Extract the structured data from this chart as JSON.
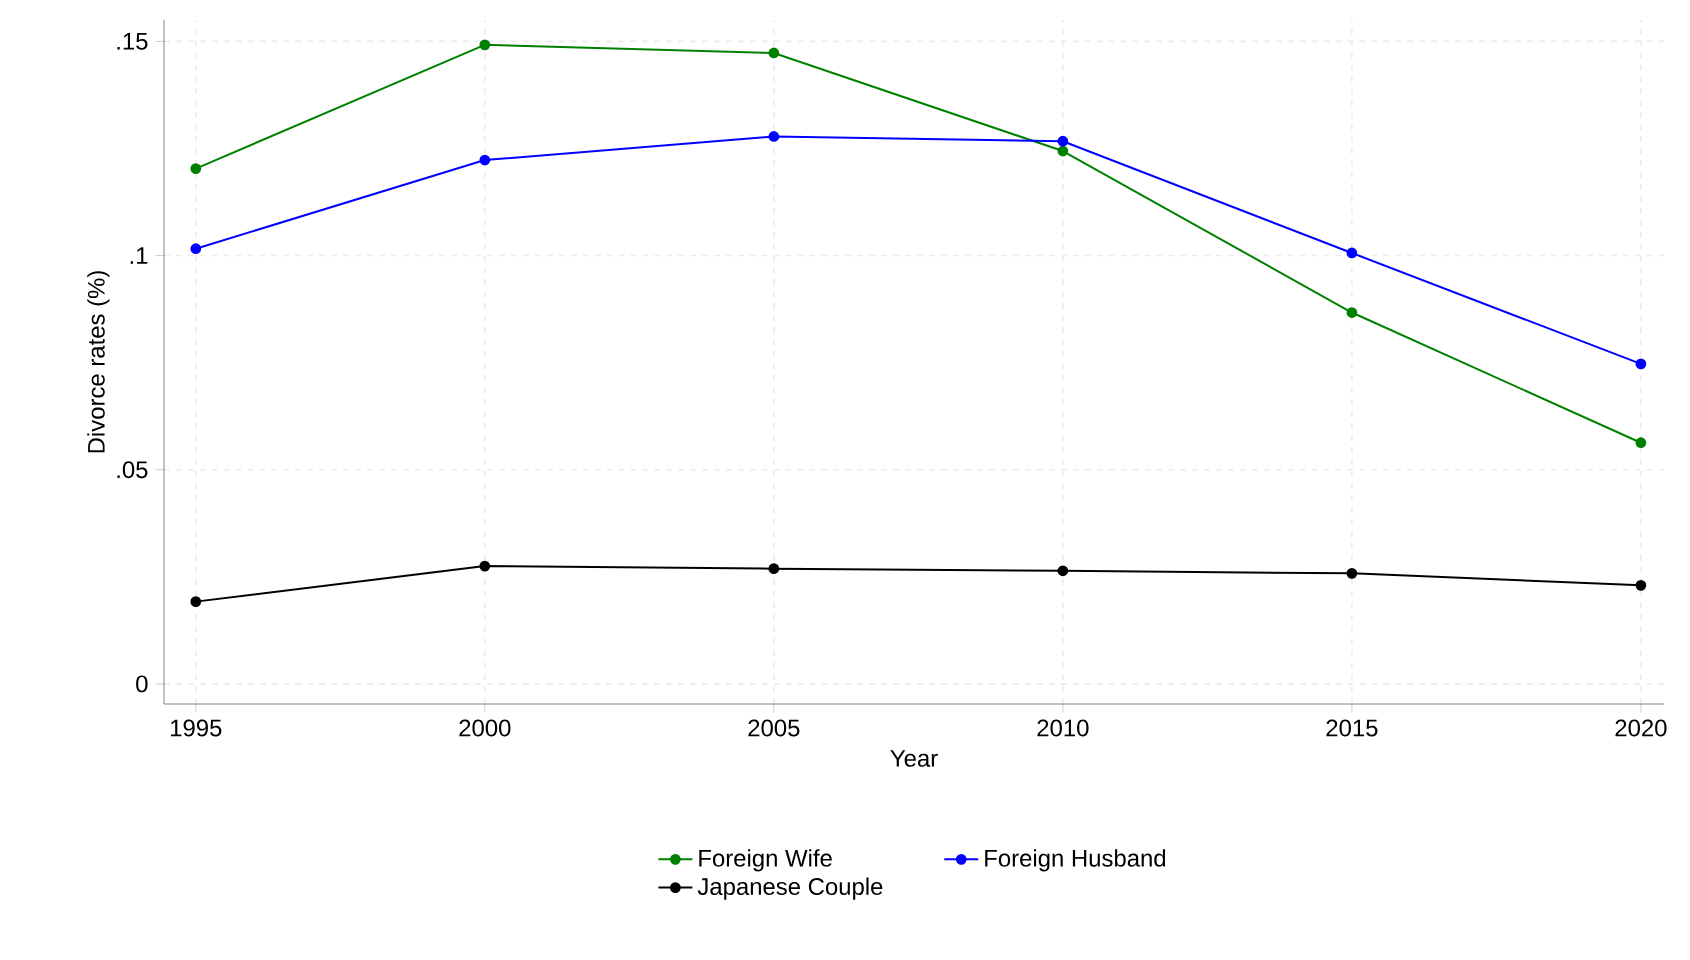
{
  "chart_data": {
    "type": "line",
    "xlabel": "Year",
    "ylabel": "Divorce rates (%)",
    "x": [
      1995,
      2000,
      2005,
      2010,
      2015,
      2020
    ],
    "series": [
      {
        "name": "Foreign Wife",
        "color": "#008000",
        "values": [
          0.1203,
          0.1492,
          0.1473,
          0.1244,
          0.0867,
          0.0563
        ]
      },
      {
        "name": "Foreign Husband",
        "color": "#0000ff",
        "values": [
          0.1016,
          0.1223,
          0.1278,
          0.1267,
          0.1006,
          0.0747
        ]
      },
      {
        "name": "Japanese Couple",
        "color": "#000000",
        "values": [
          0.0192,
          0.0275,
          0.0269,
          0.0264,
          0.0258,
          0.023
        ]
      }
    ],
    "xlim": [
      1994.45,
      2020.4
    ],
    "ylim": [
      -0.0047,
      0.155
    ],
    "xticks": [
      1995,
      2000,
      2005,
      2010,
      2015,
      2020
    ],
    "yticks": [
      {
        "value": 0,
        "label": "0"
      },
      {
        "value": 0.05,
        "label": ".05"
      },
      {
        "value": 0.1,
        "label": ".1"
      },
      {
        "value": 0.15,
        "label": ".15"
      }
    ],
    "grid": true,
    "legend": "bottom",
    "marker": "circle",
    "line_style": "solid"
  }
}
